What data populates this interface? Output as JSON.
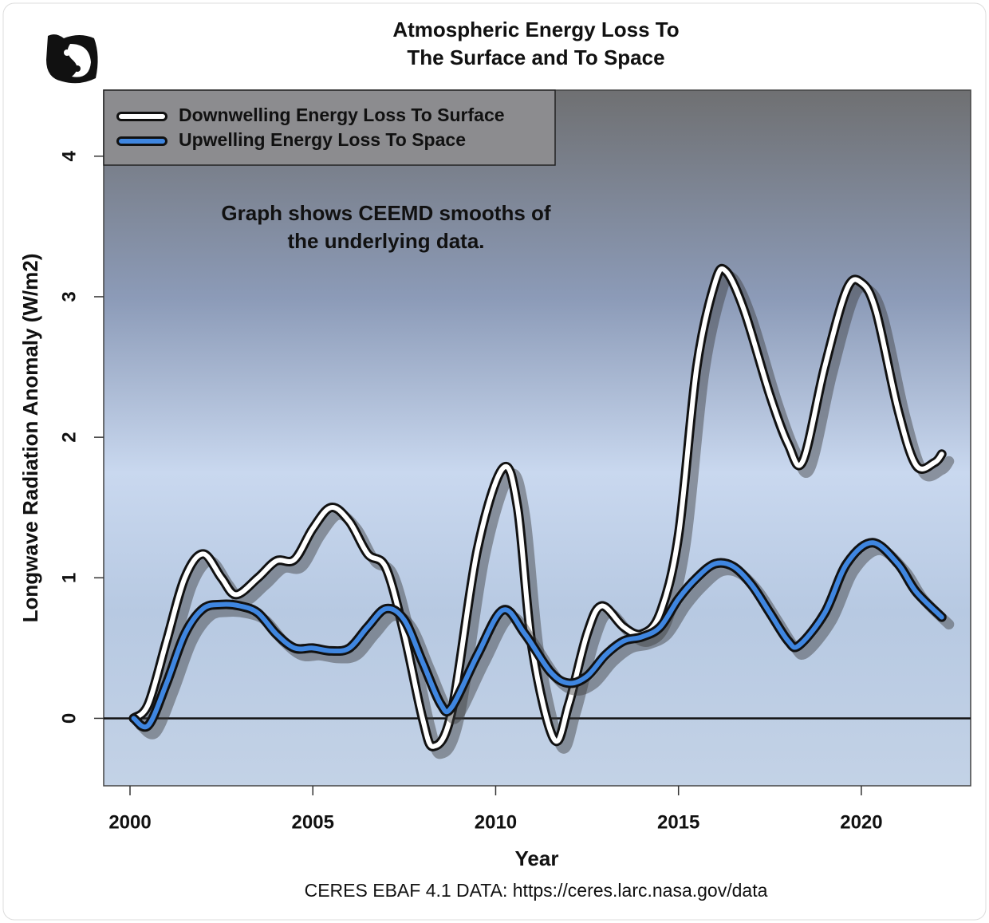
{
  "chart_data": {
    "type": "line",
    "title": [
      "Atmospheric Energy Loss To",
      "The Surface and  To Space"
    ],
    "annotation": [
      "Graph shows CEEMD smooths of",
      "the underlying data."
    ],
    "xlabel": "Year",
    "ylabel": "Longwave Radiation Anomaly (W/m2)",
    "caption": "CERES EBAF 4.1 DATA: https://ceres.larc.nasa.gov/data",
    "xlim": [
      1999.28,
      2022.99
    ],
    "ylim": [
      -0.48,
      4.47
    ],
    "xticks": [
      2000,
      2005,
      2010,
      2015,
      2020
    ],
    "yticks": [
      0,
      1,
      2,
      3,
      4
    ],
    "reference_line": 0,
    "legend": "top-left",
    "series": [
      {
        "name": "Downwelling Energy Loss To Surface",
        "color": "#ffffff",
        "x": [
          2000.1,
          2000.5,
          2001,
          2001.5,
          2002,
          2002.5,
          2002.9,
          2003.5,
          2004,
          2004.5,
          2005,
          2005.5,
          2006,
          2006.5,
          2007,
          2007.5,
          2008,
          2008.3,
          2008.8,
          2009.5,
          2010.2,
          2010.6,
          2011,
          2011.6,
          2012,
          2012.5,
          2012.9,
          2013.5,
          2014,
          2014.5,
          2015,
          2015.5,
          2016,
          2016.3,
          2016.8,
          2017.5,
          2018,
          2018.4,
          2019,
          2019.6,
          2020,
          2020.4,
          2021,
          2021.5,
          2022,
          2022.2
        ],
        "values": [
          0,
          0.1,
          0.55,
          1.0,
          1.17,
          1.0,
          0.88,
          1.0,
          1.12,
          1.13,
          1.35,
          1.5,
          1.4,
          1.17,
          1.07,
          0.6,
          0.0,
          -0.2,
          0.05,
          1.2,
          1.78,
          1.5,
          0.5,
          -0.15,
          0.1,
          0.6,
          0.8,
          0.65,
          0.6,
          0.75,
          1.3,
          2.5,
          3.1,
          3.18,
          2.9,
          2.3,
          1.95,
          1.83,
          2.5,
          3.05,
          3.1,
          2.9,
          2.2,
          1.8,
          1.82,
          1.88
        ]
      },
      {
        "name": "Upwelling Energy Loss To Space",
        "color": "#3f86e0",
        "x": [
          2000.1,
          2000.5,
          2001,
          2001.5,
          2002,
          2002.5,
          2003,
          2003.5,
          2004,
          2004.5,
          2005,
          2005.5,
          2006,
          2006.5,
          2007,
          2007.5,
          2008,
          2008.5,
          2008.8,
          2009.5,
          2010.2,
          2010.8,
          2011.5,
          2012,
          2012.5,
          2013,
          2013.5,
          2014,
          2014.5,
          2015,
          2015.5,
          2016,
          2016.5,
          2017,
          2017.5,
          2018,
          2018.3,
          2019,
          2019.6,
          2020.3,
          2021,
          2021.5,
          2022.2
        ],
        "values": [
          0,
          -0.05,
          0.25,
          0.6,
          0.78,
          0.81,
          0.8,
          0.75,
          0.6,
          0.5,
          0.5,
          0.48,
          0.5,
          0.65,
          0.78,
          0.7,
          0.4,
          0.1,
          0.08,
          0.45,
          0.77,
          0.6,
          0.33,
          0.25,
          0.3,
          0.45,
          0.55,
          0.58,
          0.65,
          0.85,
          1.0,
          1.1,
          1.08,
          0.95,
          0.75,
          0.55,
          0.52,
          0.75,
          1.1,
          1.25,
          1.1,
          0.9,
          0.72
        ]
      }
    ]
  }
}
